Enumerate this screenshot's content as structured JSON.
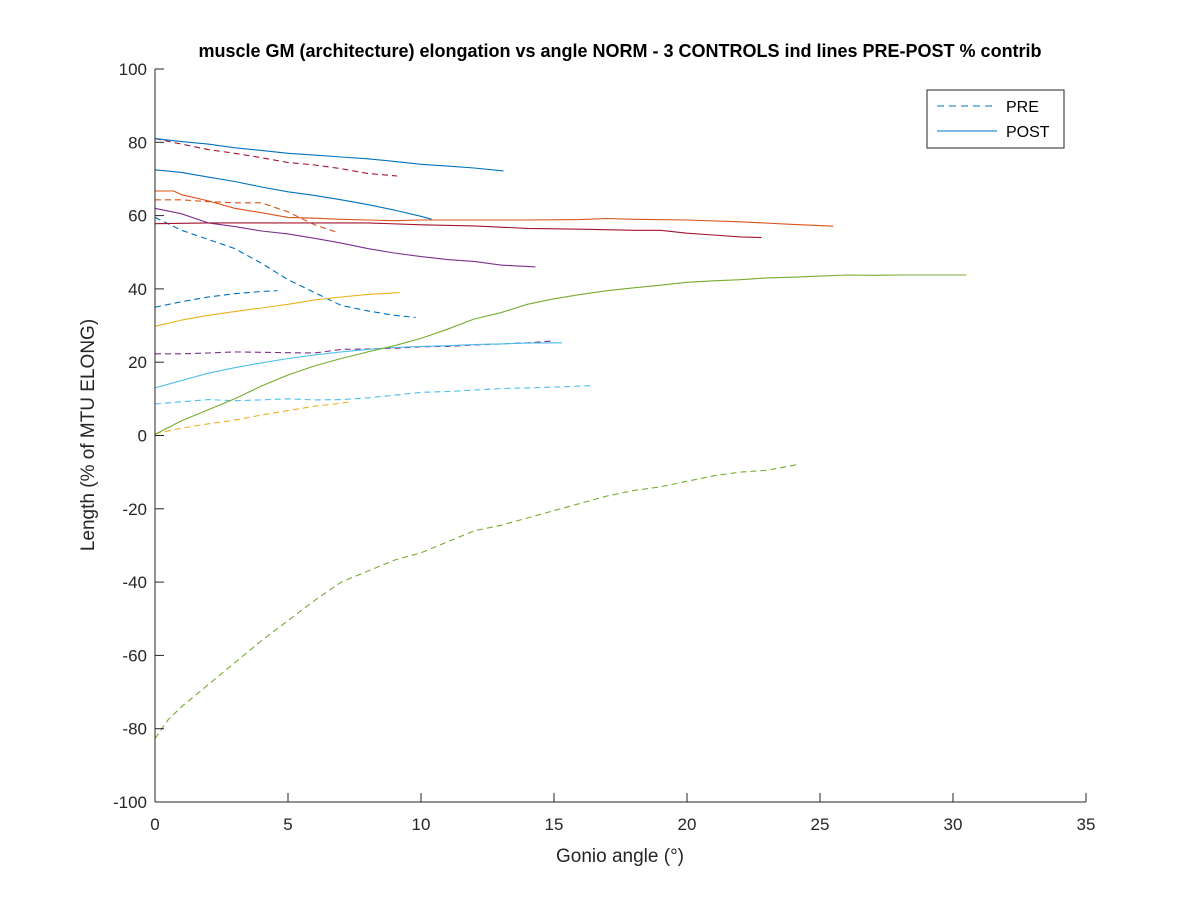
{
  "chart_data": {
    "type": "line",
    "title": "muscle GM (architecture) elongation vs angle NORM - 3 CONTROLS ind lines PRE-POST % contrib",
    "xlabel": "Gonio angle (°)",
    "ylabel": "Length (% of MTU ELONG)",
    "xlim": [
      0,
      35
    ],
    "ylim": [
      -100,
      100
    ],
    "xticks": [
      0,
      5,
      10,
      15,
      20,
      25,
      30,
      35
    ],
    "yticks": [
      -100,
      -80,
      -60,
      -40,
      -20,
      0,
      20,
      40,
      60,
      80,
      100
    ],
    "grid": false,
    "legend": {
      "position": "top-right",
      "entries": [
        {
          "label": "PRE",
          "style": "dashed",
          "color": "#0072BD"
        },
        {
          "label": "POST",
          "style": "solid",
          "color": "#0072BD"
        }
      ]
    },
    "series": [
      {
        "style": "dashed",
        "color": "#A2142F",
        "x": [
          0,
          1,
          2,
          3,
          4,
          5,
          6,
          7,
          8,
          9.1
        ],
        "y": [
          81,
          79.5,
          78,
          77,
          75.8,
          74.5,
          73.8,
          72.8,
          71.5,
          70.8
        ]
      },
      {
        "style": "dashed",
        "color": "#D95319",
        "x": [
          0,
          1,
          2,
          3,
          4,
          5,
          6,
          6.9
        ],
        "y": [
          64.3,
          64.3,
          63.8,
          63.5,
          63.5,
          61,
          57.5,
          55.3
        ]
      },
      {
        "style": "dashed",
        "color": "#0072BD",
        "x": [
          0,
          1,
          2,
          3,
          4,
          5,
          6,
          7,
          8,
          9,
          9.8
        ],
        "y": [
          59.5,
          56,
          53.5,
          51,
          47,
          42.5,
          39,
          35.5,
          34,
          32.8,
          32.2
        ]
      },
      {
        "style": "dashed",
        "color": "#0072BD",
        "x": [
          0,
          1,
          2,
          3,
          4,
          4.6
        ],
        "y": [
          35,
          36.5,
          37.8,
          38.7,
          39.3,
          39.5
        ]
      },
      {
        "style": "dashed",
        "color": "#7E2F8E",
        "x": [
          0,
          1,
          2,
          3,
          4,
          5,
          6,
          7,
          8,
          9,
          10,
          11,
          12,
          13,
          14,
          15
        ],
        "y": [
          22.3,
          22.3,
          22.5,
          22.8,
          22.7,
          22.6,
          22.5,
          23.5,
          23.6,
          23.8,
          24.2,
          24.3,
          24.7,
          25,
          25.3,
          25.8
        ]
      },
      {
        "style": "dashed",
        "color": "#4DBEEE",
        "x": [
          0,
          1,
          2,
          3,
          4,
          5,
          6,
          7,
          8,
          9,
          10,
          11,
          12,
          13,
          14,
          15,
          16.4
        ],
        "y": [
          8.6,
          9.2,
          9.8,
          9.5,
          9.7,
          10,
          9.7,
          9.8,
          10.3,
          11,
          11.8,
          12,
          12.4,
          12.8,
          13,
          13.2,
          13.6
        ]
      },
      {
        "style": "dashed",
        "color": "#EDB120",
        "x": [
          0,
          1,
          2,
          3,
          4,
          5,
          6,
          7,
          7.4
        ],
        "y": [
          0.5,
          2,
          3.2,
          4.2,
          5.6,
          6.8,
          8,
          8.8,
          9.3
        ]
      },
      {
        "style": "dashed",
        "color": "#77AC30",
        "x": [
          0,
          0.5,
          1,
          2,
          3,
          4,
          5,
          6,
          7,
          8,
          9,
          10,
          11,
          12,
          13,
          14,
          15,
          16,
          17,
          18,
          19,
          20,
          21,
          22,
          23,
          24.1
        ],
        "y": [
          -82.7,
          -77.5,
          -74,
          -68,
          -62,
          -56,
          -50.5,
          -45,
          -40,
          -37,
          -34,
          -32,
          -29,
          -26,
          -24.5,
          -22.5,
          -20.5,
          -18.5,
          -16.5,
          -15,
          -14,
          -12.5,
          -11,
          -10,
          -9.5,
          -8
        ]
      },
      {
        "style": "solid",
        "color": "#0072BD",
        "x": [
          0,
          1,
          2,
          3,
          4,
          5,
          6,
          7,
          8,
          9,
          10,
          11,
          12,
          13.1
        ],
        "y": [
          81,
          80.2,
          79.5,
          78.5,
          77.8,
          77,
          76.5,
          76,
          75.5,
          74.8,
          74,
          73.5,
          73,
          72.2
        ]
      },
      {
        "style": "solid",
        "color": "#0072BD",
        "x": [
          0,
          1,
          2,
          3,
          4,
          5,
          6,
          7,
          8,
          9,
          10,
          10.4
        ],
        "y": [
          72.5,
          71.8,
          70.5,
          69.3,
          67.8,
          66.5,
          65.5,
          64.3,
          63,
          61.5,
          59.8,
          59
        ]
      },
      {
        "style": "solid",
        "color": "#D95319",
        "x": [
          0,
          0.7,
          1,
          2,
          3,
          4,
          5,
          6,
          7,
          8,
          9,
          10,
          12,
          14,
          16,
          17,
          18,
          20,
          22,
          24,
          25.5
        ],
        "y": [
          66.7,
          66.7,
          65.7,
          64,
          62,
          60.8,
          59.5,
          59.3,
          59,
          58.8,
          58.6,
          58.8,
          58.8,
          58.8,
          58.9,
          59.2,
          59,
          58.8,
          58.3,
          57.6,
          57.1
        ]
      },
      {
        "style": "solid",
        "color": "#7E2F8E",
        "x": [
          0,
          1,
          2,
          3,
          4,
          5,
          6,
          7,
          8,
          9,
          10,
          11,
          12,
          13,
          14.3
        ],
        "y": [
          62,
          60.5,
          58,
          57,
          55.8,
          55,
          53.8,
          52.5,
          51,
          49.8,
          48.8,
          48,
          47.5,
          46.5,
          46
        ]
      },
      {
        "style": "solid",
        "color": "#A2142F",
        "x": [
          0,
          2,
          4,
          6,
          8,
          10,
          12,
          14,
          16,
          18,
          19,
          20,
          21,
          22,
          22.8
        ],
        "y": [
          57.8,
          58,
          58,
          58,
          58,
          57.5,
          57.2,
          56.5,
          56.3,
          56,
          56,
          55.2,
          54.7,
          54.2,
          54
        ]
      },
      {
        "style": "solid",
        "color": "#EDB120",
        "x": [
          0,
          1,
          2,
          3,
          4,
          5,
          6,
          7,
          8,
          9.2
        ],
        "y": [
          29.8,
          31.5,
          32.8,
          33.8,
          34.8,
          35.8,
          37,
          37.8,
          38.5,
          39
        ]
      },
      {
        "style": "solid",
        "color": "#4DBEEE",
        "x": [
          0,
          0.5,
          1,
          2,
          3,
          4,
          5,
          6,
          7,
          8,
          9,
          10,
          11,
          12,
          13,
          14,
          15.3
        ],
        "y": [
          13,
          14,
          15,
          17,
          18.5,
          19.8,
          21,
          22,
          22.8,
          23.5,
          24,
          24.3,
          24.5,
          24.8,
          25,
          25.2,
          25.3
        ]
      },
      {
        "style": "solid",
        "color": "#77AC30",
        "x": [
          0,
          1,
          2,
          3,
          4,
          5,
          6,
          7,
          8,
          9,
          10,
          11,
          12,
          13,
          14,
          15,
          16,
          17,
          18,
          19,
          20,
          21,
          22,
          23,
          24,
          25,
          26,
          27,
          28,
          29,
          30.5
        ],
        "y": [
          0.3,
          4,
          7,
          10,
          13.5,
          16.5,
          19,
          21,
          22.8,
          24.5,
          26.5,
          29,
          31.8,
          33.5,
          35.8,
          37.3,
          38.5,
          39.5,
          40.3,
          41,
          41.8,
          42.2,
          42.5,
          43,
          43.2,
          43.5,
          43.8,
          43.7,
          43.8,
          43.8,
          43.8
        ]
      }
    ]
  }
}
